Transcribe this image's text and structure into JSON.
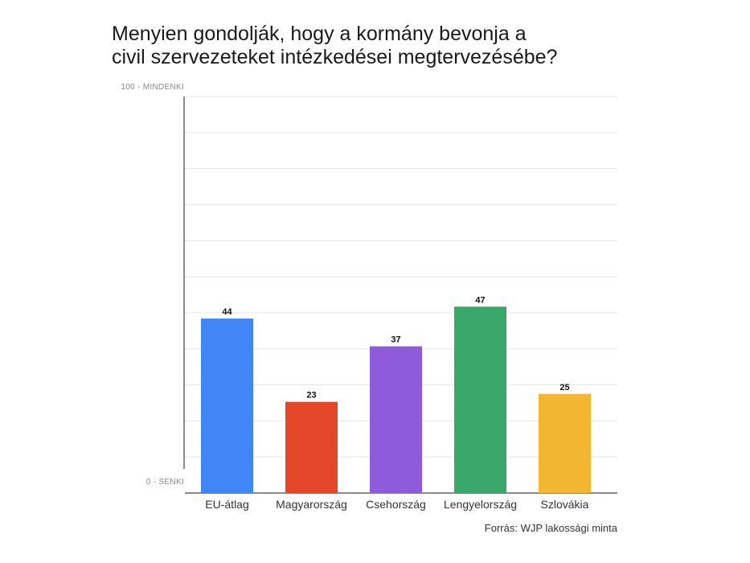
{
  "chart_data": {
    "type": "bar",
    "title_lines": [
      "Menyien gondolják, hogy a kormány bevonja a",
      "civil szervezeteket intézkedései megtervezésébe?"
    ],
    "ytick_top": "100 - MINDENKI",
    "ytick_bottom": "0 - SENKI",
    "ylim": [
      0,
      100
    ],
    "grid": true,
    "categories": [
      "EU-átlag",
      "Magyarország",
      "Csehország",
      "Lengyelország",
      "Szlovákia"
    ],
    "values": [
      44,
      23,
      37,
      47,
      25
    ],
    "colors": [
      "#4285f4",
      "#e34628",
      "#8e5cdb",
      "#3aa86b",
      "#f2b632"
    ],
    "source": "Forrás: WJP lakossági minta"
  }
}
